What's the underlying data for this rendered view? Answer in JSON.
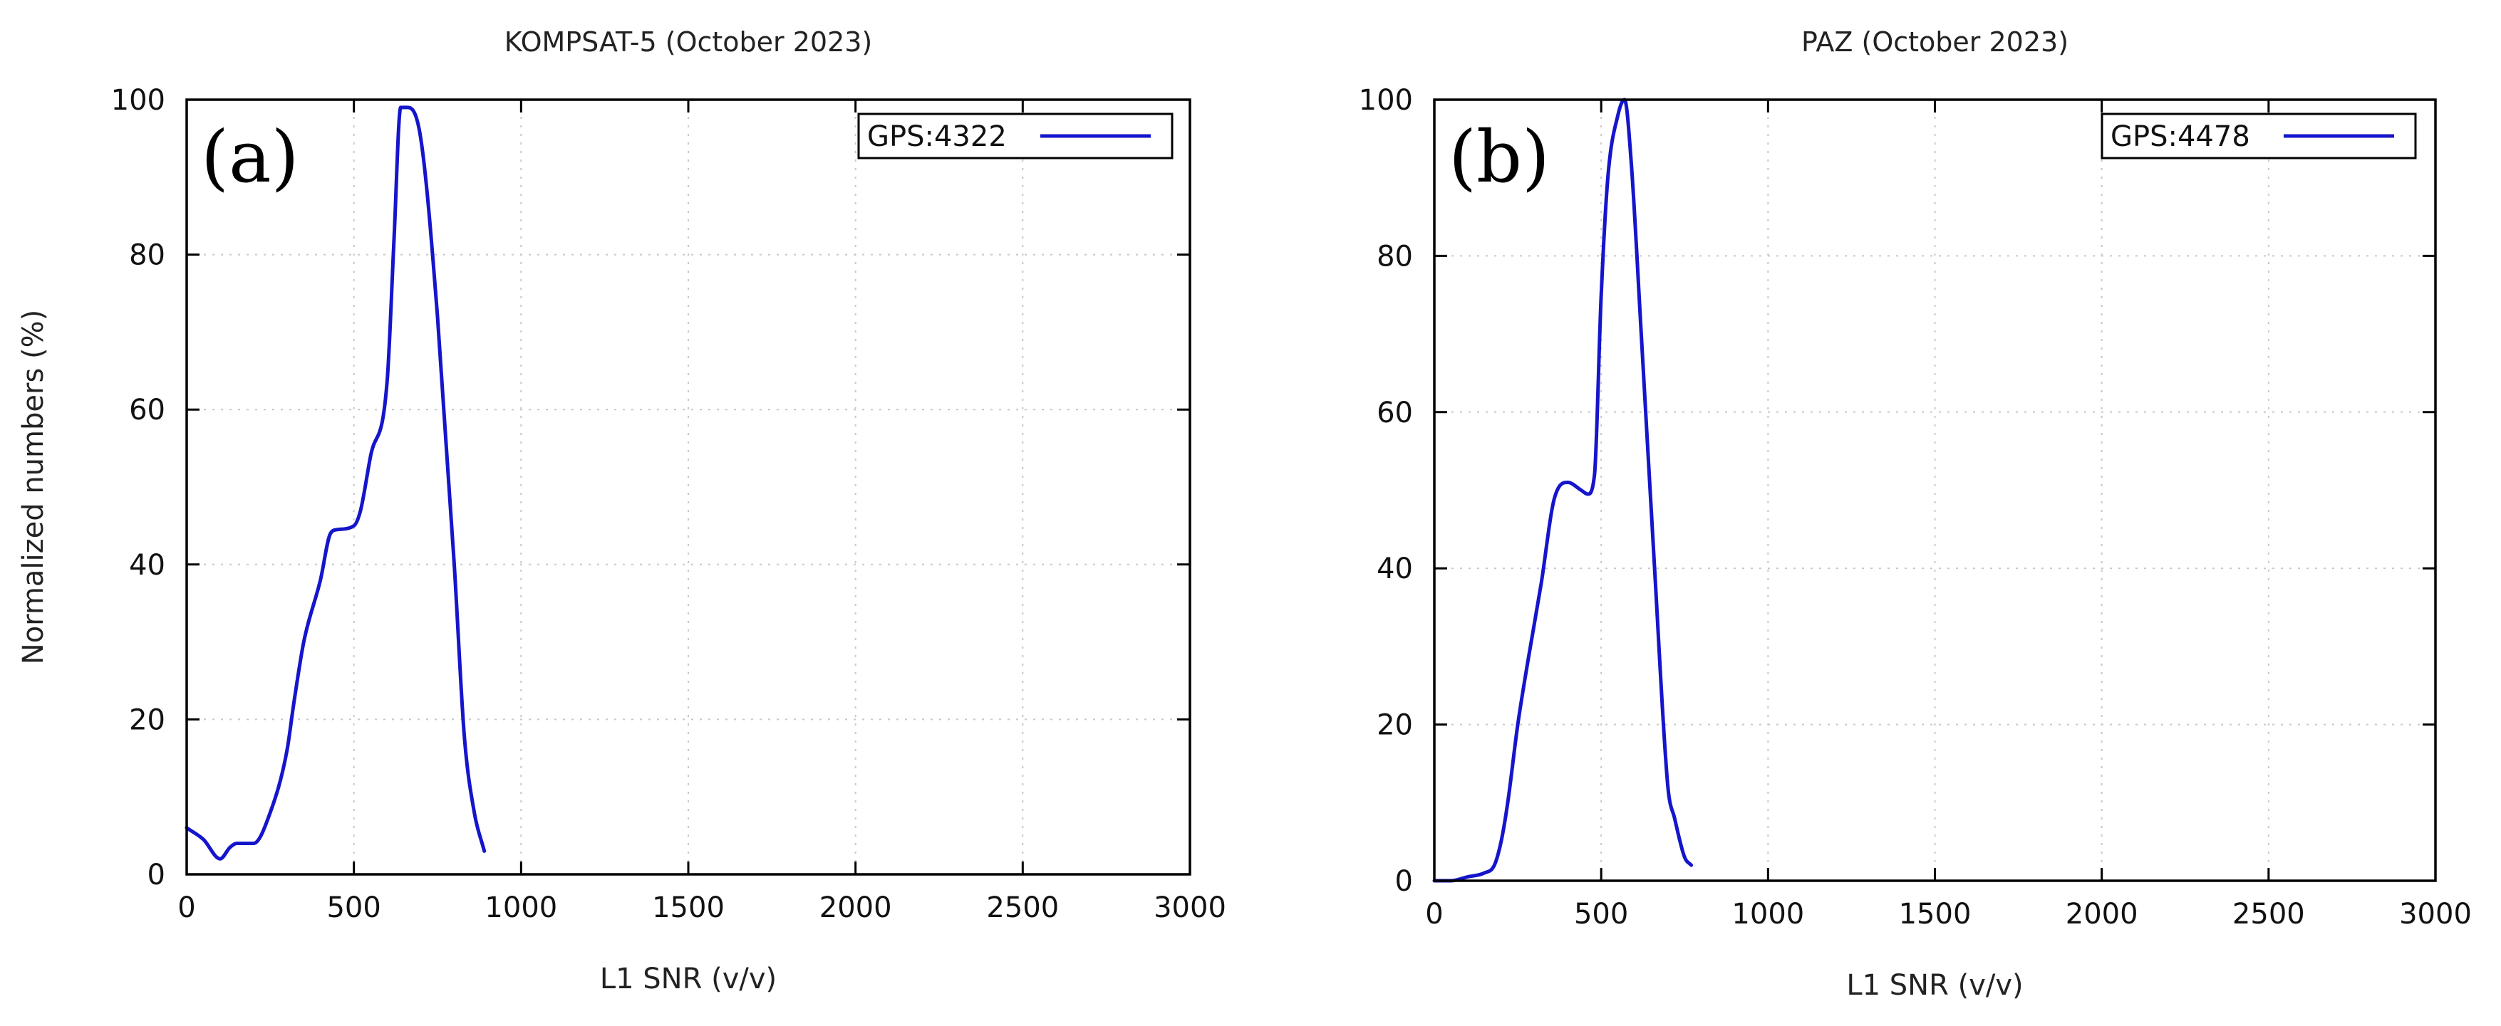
{
  "chart_data": [
    {
      "type": "line",
      "panel_label": "(a)",
      "title": "KOMPSAT-5 (October 2023)",
      "xlabel": "L1 SNR (v/v)",
      "ylabel": "Normalized numbers (%)",
      "xlim": [
        0,
        3000
      ],
      "ylim": [
        0,
        100
      ],
      "xticks": [
        0,
        500,
        1000,
        1500,
        2000,
        2500,
        3000
      ],
      "yticks": [
        0,
        20,
        40,
        60,
        80,
        100
      ],
      "grid": true,
      "legend_position": "top-right",
      "colors": {
        "series": "#1515cc"
      },
      "series": [
        {
          "name": "GPS:4322",
          "x": [
            0,
            50,
            100,
            130,
            150,
            200,
            250,
            300,
            320,
            350,
            400,
            430,
            450,
            500,
            520,
            550,
            600,
            620,
            640,
            660,
            700,
            750,
            800,
            830,
            860,
            890
          ],
          "y": [
            6,
            4.5,
            2,
            3.5,
            4,
            4,
            8,
            16,
            22,
            30,
            38,
            44,
            44.5,
            45,
            47,
            54,
            64,
            82,
            99,
            99,
            95,
            72,
            40,
            18,
            8,
            3
          ]
        }
      ]
    },
    {
      "type": "line",
      "panel_label": "(b)",
      "title": "PAZ (October 2023)",
      "xlabel": "L1 SNR (v/v)",
      "ylabel": "",
      "xlim": [
        0,
        3000
      ],
      "ylim": [
        0,
        100
      ],
      "xticks": [
        0,
        500,
        1000,
        1500,
        2000,
        2500,
        3000
      ],
      "yticks": [
        0,
        20,
        40,
        60,
        80,
        100
      ],
      "grid": true,
      "legend_position": "top-right",
      "colors": {
        "series": "#1515cc"
      },
      "series": [
        {
          "name": "GPS:4478",
          "x": [
            0,
            50,
            100,
            150,
            180,
            200,
            220,
            250,
            280,
            320,
            360,
            400,
            440,
            460,
            480,
            500,
            520,
            550,
            570,
            590,
            620,
            660,
            700,
            720,
            750,
            770
          ],
          "y": [
            0,
            0,
            0.5,
            1,
            2,
            5,
            10,
            20,
            28,
            38,
            49,
            51,
            50,
            49.5,
            52,
            75,
            90,
            98,
            100,
            92,
            70,
            40,
            12,
            8,
            3,
            2
          ]
        }
      ]
    }
  ]
}
